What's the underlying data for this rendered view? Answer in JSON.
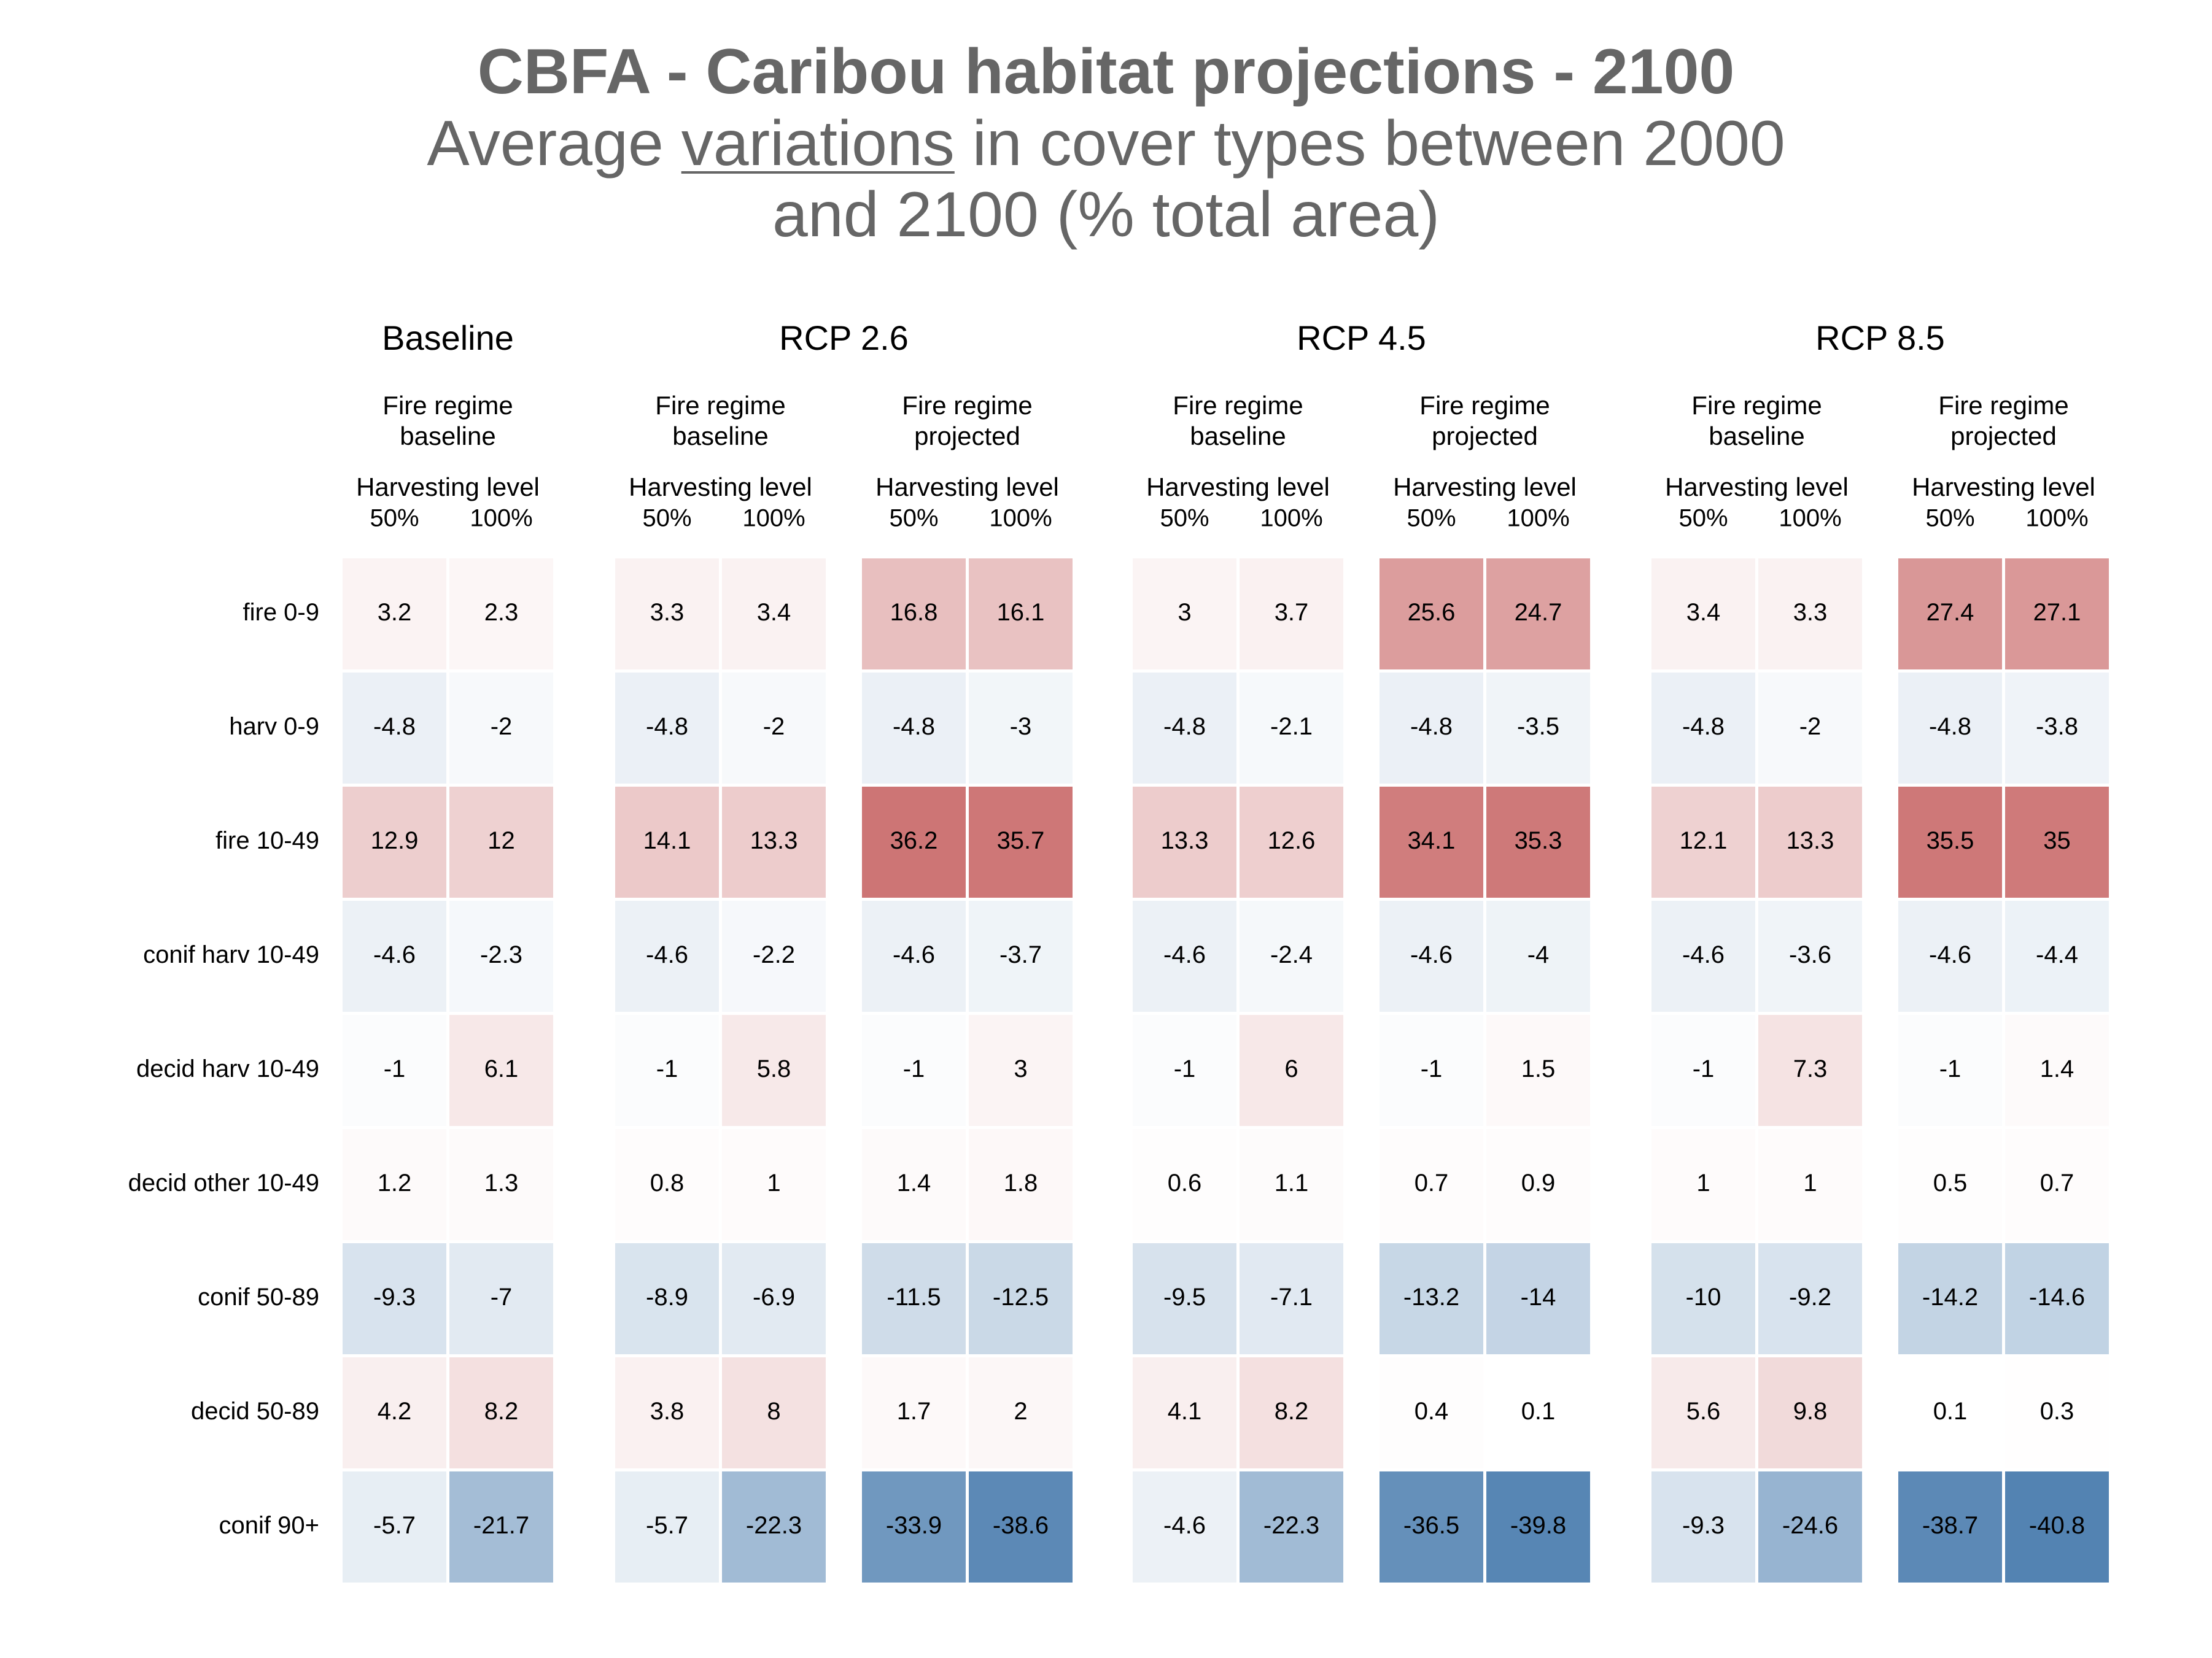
{
  "chart_data": {
    "type": "heatmap",
    "title": "CBFA - Caribou habitat projections - 2100",
    "subtitle": {
      "before": "Average ",
      "underlined": "variations",
      "after_line1": " in cover types between 2000",
      "line2": "and 2100 (% total area)"
    },
    "harvest_header": "Harvesting level",
    "rows": [
      "fire 0-9",
      "harv 0-9",
      "fire 10-49",
      "conif harv 10-49",
      "decid harv 10-49",
      "decid other 10-49",
      "conif 50-89",
      "decid 50-89",
      "conif 90+"
    ],
    "scenarios": [
      {
        "name": "Baseline",
        "panels": [
          {
            "fire_regime": [
              "Fire regime",
              "baseline"
            ],
            "harvest_levels": [
              "50%",
              "100%"
            ],
            "values": [
              [
                3.2,
                2.3
              ],
              [
                -4.8,
                -2
              ],
              [
                12.9,
                12
              ],
              [
                -4.6,
                -2.3
              ],
              [
                -1,
                6.1
              ],
              [
                1.2,
                1.3
              ],
              [
                -9.3,
                -7
              ],
              [
                4.2,
                8.2
              ],
              [
                -5.7,
                -21.7
              ]
            ]
          }
        ]
      },
      {
        "name": "RCP 2.6",
        "panels": [
          {
            "fire_regime": [
              "Fire regime",
              "baseline"
            ],
            "harvest_levels": [
              "50%",
              "100%"
            ],
            "values": [
              [
                3.3,
                3.4
              ],
              [
                -4.8,
                -2
              ],
              [
                14.1,
                13.3
              ],
              [
                -4.6,
                -2.2
              ],
              [
                -1,
                5.8
              ],
              [
                0.8,
                1
              ],
              [
                -8.9,
                -6.9
              ],
              [
                3.8,
                8
              ],
              [
                -5.7,
                -22.3
              ]
            ]
          },
          {
            "fire_regime": [
              "Fire regime",
              "projected"
            ],
            "harvest_levels": [
              "50%",
              "100%"
            ],
            "values": [
              [
                16.8,
                16.1
              ],
              [
                -4.8,
                -3
              ],
              [
                36.2,
                35.7
              ],
              [
                -4.6,
                -3.7
              ],
              [
                -1,
                3
              ],
              [
                1.4,
                1.8
              ],
              [
                -11.5,
                -12.5
              ],
              [
                1.7,
                2
              ],
              [
                -33.9,
                -38.6
              ]
            ]
          }
        ]
      },
      {
        "name": "RCP 4.5",
        "panels": [
          {
            "fire_regime": [
              "Fire regime",
              "baseline"
            ],
            "harvest_levels": [
              "50%",
              "100%"
            ],
            "values": [
              [
                3,
                3.7
              ],
              [
                -4.8,
                -2.1
              ],
              [
                13.3,
                12.6
              ],
              [
                -4.6,
                -2.4
              ],
              [
                -1,
                6
              ],
              [
                0.6,
                1.1
              ],
              [
                -9.5,
                -7.1
              ],
              [
                4.1,
                8.2
              ],
              [
                -4.6,
                -22.3
              ]
            ]
          },
          {
            "fire_regime": [
              "Fire regime",
              "projected"
            ],
            "harvest_levels": [
              "50%",
              "100%"
            ],
            "values": [
              [
                25.6,
                24.7
              ],
              [
                -4.8,
                -3.5
              ],
              [
                34.1,
                35.3
              ],
              [
                -4.6,
                -4
              ],
              [
                -1,
                1.5
              ],
              [
                0.7,
                0.9
              ],
              [
                -13.2,
                -14
              ],
              [
                0.4,
                0.1
              ],
              [
                -36.5,
                -39.8
              ]
            ]
          }
        ]
      },
      {
        "name": "RCP 8.5",
        "panels": [
          {
            "fire_regime": [
              "Fire regime",
              "baseline"
            ],
            "harvest_levels": [
              "50%",
              "100%"
            ],
            "values": [
              [
                3.4,
                3.3
              ],
              [
                -4.8,
                -2
              ],
              [
                12.1,
                13.3
              ],
              [
                -4.6,
                -3.6
              ],
              [
                -1,
                7.3
              ],
              [
                1,
                1
              ],
              [
                -10,
                -9.2
              ],
              [
                5.6,
                9.8
              ],
              [
                -9.3,
                -24.6
              ]
            ]
          },
          {
            "fire_regime": [
              "Fire regime",
              "projected"
            ],
            "harvest_levels": [
              "50%",
              "100%"
            ],
            "values": [
              [
                27.4,
                27.1
              ],
              [
                -4.8,
                -3.8
              ],
              [
                35.5,
                35
              ],
              [
                -4.6,
                -4.4
              ],
              [
                -1,
                1.4
              ],
              [
                0.5,
                0.7
              ],
              [
                -14.2,
                -14.6
              ],
              [
                0.1,
                0.3
              ],
              [
                -38.7,
                -40.8
              ]
            ]
          }
        ]
      }
    ],
    "color_scale": {
      "negative": "#4e7fb0",
      "neutral": "#ffffff",
      "positive": "#c55f5f",
      "limit": 42
    },
    "legend": "none"
  }
}
